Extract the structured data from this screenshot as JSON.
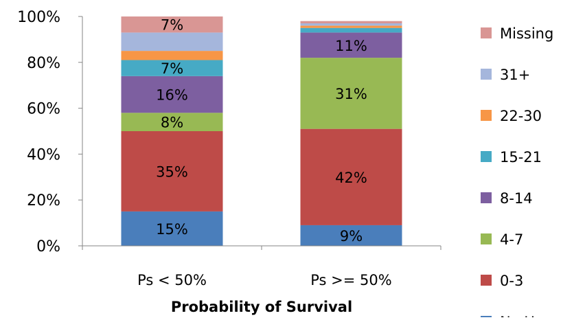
{
  "chart_data": {
    "type": "bar",
    "stacked": true,
    "percent": true,
    "categories": [
      "Ps < 50%",
      "Ps >= 50%"
    ],
    "xlabel": "Probability  of Survival",
    "ylabel": "",
    "ylim": [
      0,
      100
    ],
    "yticks": [
      "0%",
      "20%",
      "40%",
      "60%",
      "80%",
      "100%"
    ],
    "grid": false,
    "legend_position": "right",
    "series": [
      {
        "name": "No Hosp.",
        "color": "#4a7ebb",
        "values": [
          15,
          9
        ],
        "labels": [
          "15%",
          "9%"
        ]
      },
      {
        "name": "0-3",
        "color": "#be4b48",
        "values": [
          35,
          42
        ],
        "labels": [
          "35%",
          "42%"
        ]
      },
      {
        "name": "4-7",
        "color": "#98b954",
        "values": [
          8,
          31
        ],
        "labels": [
          "8%",
          "31%"
        ]
      },
      {
        "name": "8-14",
        "color": "#7d5fa0",
        "values": [
          16,
          11
        ],
        "labels": [
          "16%",
          "11%"
        ]
      },
      {
        "name": "15-21",
        "color": "#46aac5",
        "values": [
          7,
          2
        ],
        "labels": [
          "7%",
          ""
        ]
      },
      {
        "name": "22-30",
        "color": "#f79646",
        "values": [
          4,
          1
        ],
        "labels": [
          "",
          ""
        ]
      },
      {
        "name": "31+",
        "color": "#a5b6dc",
        "values": [
          8,
          1
        ],
        "labels": [
          "",
          ""
        ]
      },
      {
        "name": "Missing",
        "color": "#d99694",
        "values": [
          7,
          1
        ],
        "labels": [
          "7%",
          ""
        ]
      }
    ]
  }
}
